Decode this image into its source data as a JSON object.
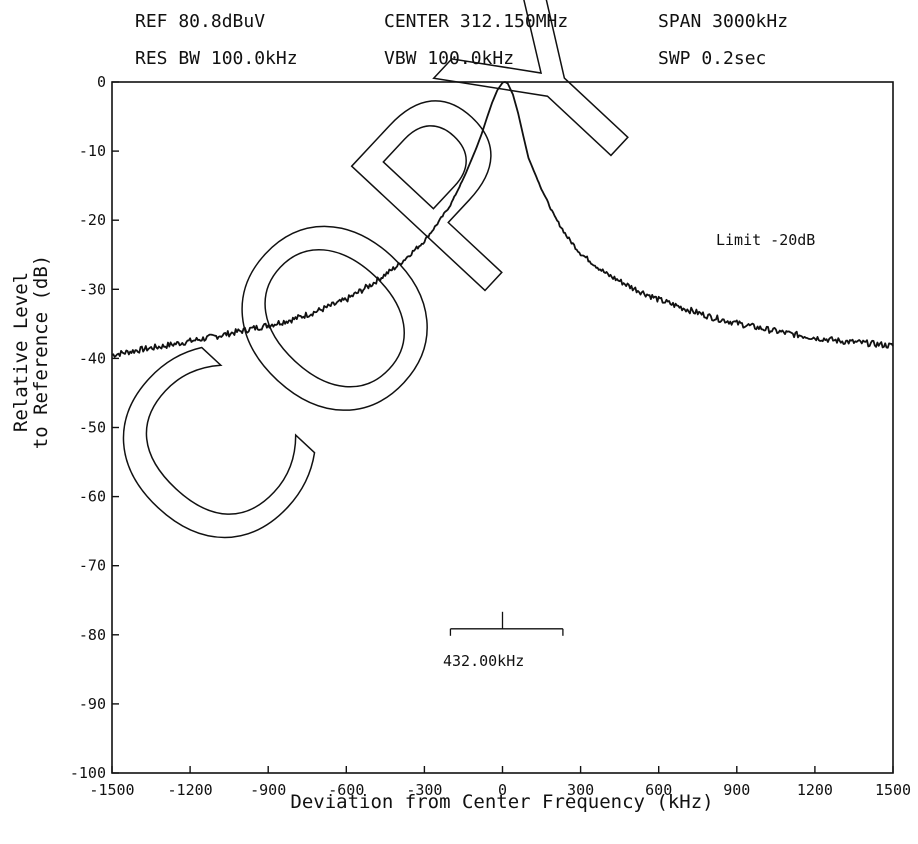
{
  "header": {
    "ref": "REF 80.8dBuV",
    "center": "CENTER 312.150MHz",
    "span": "SPAN 3000kHz",
    "res_bw": "RES BW 100.0kHz",
    "vbw": "VBW 100.0kHz",
    "swp": "SWP 0.2sec"
  },
  "annotations": {
    "limit": "Limit -20dB",
    "bandwidth": "432.00kHz"
  },
  "watermark": "COPY",
  "chart_data": {
    "type": "line",
    "title": "",
    "xlabel": "Deviation from Center Frequency (kHz)",
    "ylabel_lines": [
      "Relative Level",
      "to Reference (dB)"
    ],
    "xlim": [
      -1500,
      1500
    ],
    "ylim": [
      -100,
      0
    ],
    "xticks": [
      -1500,
      -1200,
      -900,
      -600,
      -300,
      0,
      300,
      600,
      900,
      1200,
      1500
    ],
    "yticks": [
      0,
      -10,
      -20,
      -30,
      -40,
      -50,
      -60,
      -70,
      -80,
      -90,
      -100
    ],
    "grid": false,
    "bandwidth_marker": {
      "x_start": -200,
      "x_end": 232,
      "center": 0,
      "y": -80
    },
    "series": [
      {
        "x": [
          -1500,
          -1400,
          -1300,
          -1200,
          -1100,
          -1000,
          -900,
          -800,
          -700,
          -600,
          -500,
          -400,
          -300,
          -250,
          -200,
          -150,
          -100,
          -80,
          -60,
          -40,
          -20,
          0,
          10,
          20,
          40,
          60,
          80,
          100,
          150,
          200,
          250,
          300,
          400,
          500,
          600,
          700,
          800,
          900,
          1000,
          1100,
          1200,
          1300,
          1400,
          1500
        ],
        "y": [
          -39.5,
          -38.8,
          -38.2,
          -37.5,
          -36.8,
          -36.0,
          -35.2,
          -34.3,
          -33.0,
          -31.5,
          -29.2,
          -26.5,
          -23.0,
          -20.5,
          -17.8,
          -14.0,
          -9.5,
          -7.5,
          -5.2,
          -3.0,
          -1.2,
          -0.1,
          0,
          -0.2,
          -1.8,
          -4.5,
          -7.8,
          -11.0,
          -15.5,
          -19.5,
          -22.5,
          -24.8,
          -27.8,
          -29.8,
          -31.5,
          -32.8,
          -34.0,
          -34.9,
          -35.7,
          -36.4,
          -37.0,
          -37.5,
          -37.8,
          -38.2
        ]
      }
    ]
  }
}
